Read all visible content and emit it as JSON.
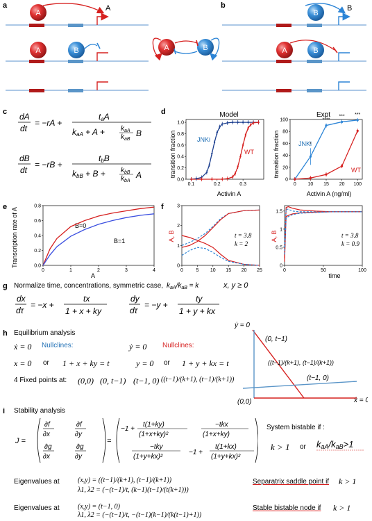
{
  "panels": {
    "a": "a",
    "b": "b",
    "c": "c",
    "d": "d",
    "e": "e",
    "f": "f",
    "g": "g",
    "h": "h",
    "i": "i"
  },
  "nodes": {
    "A": "A",
    "B": "B"
  },
  "colors": {
    "red": "#d6201f",
    "blue": "#2b84d6",
    "dark_blue": "#1c3f8f",
    "promoter_red": "#b01a1a",
    "promoter_blue": "#5a95c8",
    "dna": "#7aa8d6"
  },
  "panel_c": {
    "eq1_lhs": "dA/dt",
    "eq1_rhs": "= −rA + t_aA / (k_aA + A + (k_aA/k_aB) B)",
    "eq2_lhs": "dB/dt",
    "eq2_rhs": "= −rB + t_bB / (k_bB + B + (k_bB/k_bA) A)"
  },
  "panel_d": {
    "model_title": "Model",
    "expt_title": "Expt",
    "ylabel": "transition fraction",
    "xlabel_model": "Activin A",
    "xlabel_expt": "Activin A (ng/ml)",
    "label_jnki": "JNKi",
    "label_wt": "WT",
    "stars": [
      "*",
      "****",
      "***",
      "***"
    ]
  },
  "panel_e": {
    "ylabel": "Transcription rate of A",
    "xlabel": "A",
    "label_b0": "B=0",
    "label_b1": "B=1"
  },
  "panel_f": {
    "ylabel": "A, B",
    "xlabel": "time",
    "ann1_t": "t = 3.8",
    "ann1_k": "k = 2",
    "ann2_t": "t = 3.8",
    "ann2_k": "k = 0.9"
  },
  "panel_g": {
    "intro": "Normalize time, concentrations,  symmetric case,",
    "ratio": "k_aA/k_aB = k",
    "cond": "x, y ≥ 0",
    "eqx": "dx/dτ = −x + tx / (1 + x + ky)",
    "eqy": "dy/dτ = −y + ty / (1 + y + kx)"
  },
  "panel_h": {
    "title": "Equilibrium analysis",
    "xdot": "ẋ = 0",
    "ydot": "ẏ = 0",
    "null_blue": "Nullclines:",
    "null_red": "Nullclines:",
    "x0": "x = 0",
    "or1": "or",
    "xline": "1 + x + ky = t",
    "y0": "y = 0",
    "or2": "or",
    "yline": "1 + y + kx = t",
    "fp_label": "4 Fixed points at:",
    "fp1": "(0,0)",
    "fp2": "(0, t−1)",
    "fp3": "(t−1, 0)",
    "fp4": "((t−1)/(k+1), (t−1)/(k+1))",
    "phase_ydot": "ẏ = 0",
    "phase_xdot": "ẋ = 0",
    "phase_p1": "(0, t−1)",
    "phase_p2": "((t−1)/(k+1), (t−1)/(k+1))",
    "phase_p3": "(t−1, 0)",
    "phase_p4": "(0,0)"
  },
  "panel_i": {
    "title": "Stability analysis",
    "J": "J =",
    "bistable": "System bistable if :",
    "cond1": "k > 1",
    "or": "or",
    "cond2": "k_aA/k_aB > 1",
    "eig_at1": "Eigenvalues at",
    "eig_pt1": "(x,y) = ((t−1)/(k+1), (t−1)/(k+1))",
    "eig_val1": "λ1, λ2 = (−(t−1)/t, (k−1)(t−1)/(t(k+1)))",
    "res1": "Separatrix saddle point if",
    "res1_k": "k > 1",
    "eig_at2": "Eigenvalues at",
    "eig_pt2": "(x,y) = (t−1, 0)",
    "eig_val2": "λ1, λ2 = (−(t−1)/t, −(t−1)(k−1)/(k(t−1)+1))",
    "res2": "Stable bistable node if",
    "res2_k": "k > 1"
  },
  "chart_data": [
    {
      "type": "line",
      "title": "Model",
      "xlabel": "Activin A",
      "ylabel": "transition fraction",
      "xlim": [
        0.08,
        0.38
      ],
      "ylim": [
        0,
        1.05
      ],
      "xticks": [
        0.1,
        0.2,
        0.3
      ],
      "yticks": [
        0,
        0.2,
        0.4,
        0.6,
        0.8,
        1.0
      ],
      "series": [
        {
          "name": "JNKi",
          "x": [
            0.1,
            0.12,
            0.14,
            0.16,
            0.17,
            0.18,
            0.19,
            0.2,
            0.21,
            0.22,
            0.24,
            0.26,
            0.28,
            0.3,
            0.32,
            0.34,
            0.36
          ],
          "values": [
            0.0,
            0.01,
            0.03,
            0.12,
            0.25,
            0.45,
            0.65,
            0.82,
            0.92,
            0.97,
            0.99,
            1.0,
            1.0,
            1.0,
            1.0,
            1.0,
            1.0
          ]
        },
        {
          "name": "WT",
          "x": [
            0.1,
            0.14,
            0.18,
            0.22,
            0.24,
            0.26,
            0.27,
            0.28,
            0.29,
            0.3,
            0.31,
            0.32,
            0.33,
            0.34,
            0.36
          ],
          "values": [
            0.0,
            0.0,
            0.0,
            0.0,
            0.01,
            0.04,
            0.1,
            0.22,
            0.4,
            0.6,
            0.78,
            0.9,
            0.96,
            0.99,
            1.0
          ]
        }
      ]
    },
    {
      "type": "line",
      "title": "Expt",
      "xlabel": "Activin A (ng/ml)",
      "ylabel": "transition fraction",
      "categories": [
        "0",
        "10",
        "15",
        "20",
        "100"
      ],
      "ylim": [
        0,
        100
      ],
      "yticks": [
        0,
        20,
        40,
        60,
        80,
        100
      ],
      "series": [
        {
          "name": "JNKi",
          "values": [
            0,
            38,
            90,
            96,
            99
          ]
        },
        {
          "name": "WT",
          "values": [
            0,
            2,
            8,
            22,
            81
          ]
        }
      ]
    },
    {
      "type": "line",
      "xlabel": "A",
      "ylabel": "Transcription rate of A",
      "xlim": [
        0,
        4
      ],
      "ylim": [
        0,
        0.8
      ],
      "xticks": [
        0,
        1,
        2,
        3,
        4
      ],
      "yticks": [
        0,
        0.2,
        0.4,
        0.6,
        0.8
      ],
      "series": [
        {
          "name": "B=0",
          "x": [
            0,
            0.25,
            0.5,
            1,
            1.5,
            2,
            2.5,
            3,
            3.5,
            4
          ],
          "values": [
            0,
            0.22,
            0.36,
            0.52,
            0.6,
            0.66,
            0.7,
            0.73,
            0.76,
            0.78
          ]
        },
        {
          "name": "B=1",
          "x": [
            0,
            0.25,
            0.5,
            1,
            1.5,
            2,
            2.5,
            3,
            3.5,
            4
          ],
          "values": [
            0,
            0.14,
            0.25,
            0.39,
            0.48,
            0.55,
            0.6,
            0.64,
            0.67,
            0.69
          ]
        }
      ]
    },
    {
      "type": "line",
      "xlabel": "time",
      "ylabel": "A, B",
      "xlim": [
        0,
        25
      ],
      "ylim": [
        0,
        3
      ],
      "xticks": [
        0,
        5,
        10,
        15,
        20,
        25
      ],
      "yticks": [
        0,
        1,
        2,
        3
      ],
      "series": [
        {
          "name": "A1",
          "x": [
            0,
            2.5,
            5,
            7.5,
            10,
            12.5,
            15,
            20,
            25
          ],
          "values": [
            1.5,
            1.4,
            1.25,
            1.1,
            0.9,
            0.55,
            0.25,
            0.05,
            0.0
          ]
        },
        {
          "name": "B1",
          "x": [
            0,
            2.5,
            5,
            7.5,
            10,
            12.5,
            15,
            20,
            25
          ],
          "values": [
            1.0,
            1.15,
            1.35,
            1.6,
            1.95,
            2.35,
            2.6,
            2.75,
            2.78
          ]
        },
        {
          "name": "A2",
          "x": [
            0,
            2.5,
            5,
            7.5,
            10,
            12.5,
            15,
            20,
            25
          ],
          "values": [
            0.9,
            1.0,
            1.2,
            1.5,
            1.9,
            2.3,
            2.6,
            2.75,
            2.78
          ]
        },
        {
          "name": "B2",
          "x": [
            0,
            2.5,
            5,
            7.5,
            10,
            12.5,
            15,
            20,
            25
          ],
          "values": [
            0.5,
            0.75,
            0.9,
            0.85,
            0.65,
            0.4,
            0.2,
            0.05,
            0.0
          ]
        }
      ]
    },
    {
      "type": "line",
      "xlabel": "time",
      "ylabel": "A, B",
      "xlim": [
        0,
        100
      ],
      "ylim": [
        0,
        1.65
      ],
      "xticks": [
        0,
        50,
        100
      ],
      "yticks": [
        0,
        0.5,
        1,
        1.5
      ],
      "series": [
        {
          "name": "A1",
          "x": [
            0,
            2,
            5,
            10,
            20,
            40,
            60,
            80,
            100
          ],
          "values": [
            0.2,
            1.6,
            1.62,
            1.58,
            1.53,
            1.5,
            1.48,
            1.48,
            1.48
          ]
        },
        {
          "name": "B1",
          "x": [
            0,
            2,
            5,
            10,
            20,
            40,
            60,
            80,
            100
          ],
          "values": [
            0.5,
            1.55,
            1.55,
            1.5,
            1.48,
            1.48,
            1.48,
            1.48,
            1.48
          ]
        },
        {
          "name": "A2",
          "x": [
            0,
            2,
            5,
            10,
            20,
            40,
            60,
            80,
            100
          ],
          "values": [
            0.1,
            1.35,
            1.38,
            1.42,
            1.45,
            1.47,
            1.48,
            1.48,
            1.48
          ]
        },
        {
          "name": "B2",
          "x": [
            0,
            2,
            5,
            10,
            20,
            40,
            60,
            80,
            100
          ],
          "values": [
            0.3,
            1.3,
            1.35,
            1.4,
            1.44,
            1.46,
            1.48,
            1.48,
            1.48
          ]
        }
      ]
    }
  ]
}
